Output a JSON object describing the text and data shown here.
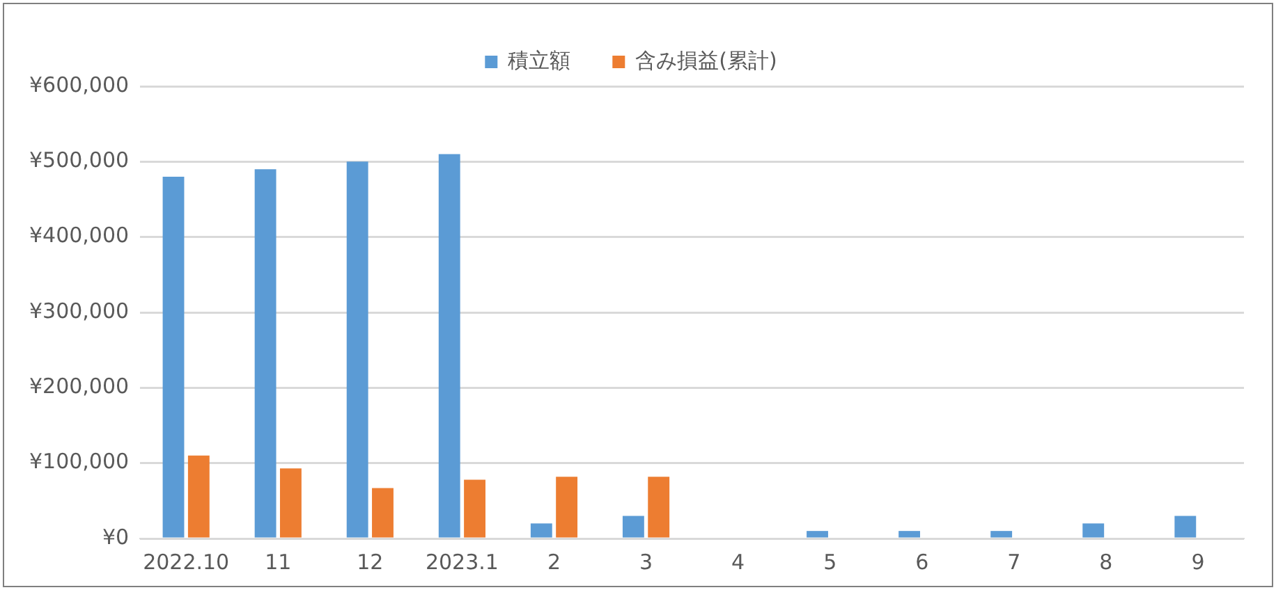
{
  "chart_data": {
    "type": "bar",
    "categories": [
      "2022.10",
      "11",
      "12",
      "2023.1",
      "2",
      "3",
      "4",
      "5",
      "6",
      "7",
      "8",
      "9"
    ],
    "series": [
      {
        "name": "積立額",
        "color": "#5b9bd5",
        "values": [
          480000,
          490000,
          500000,
          510000,
          20000,
          30000,
          null,
          10000,
          10000,
          10000,
          20000,
          30000
        ]
      },
      {
        "name": "含み損益(累計)",
        "color": "#ed7d31",
        "values": [
          110000,
          93000,
          67000,
          78000,
          82000,
          82000,
          null,
          null,
          null,
          null,
          null,
          null
        ]
      }
    ],
    "ylim": [
      0,
      600000
    ],
    "yticks": [
      {
        "value": 0,
        "label": "¥0"
      },
      {
        "value": 100000,
        "label": "¥100,000"
      },
      {
        "value": 200000,
        "label": "¥200,000"
      },
      {
        "value": 300000,
        "label": "¥300,000"
      },
      {
        "value": 400000,
        "label": "¥400,000"
      },
      {
        "value": 500000,
        "label": "¥500,000"
      },
      {
        "value": 600000,
        "label": "¥600,000"
      }
    ],
    "grid": "y",
    "legend": "top"
  }
}
